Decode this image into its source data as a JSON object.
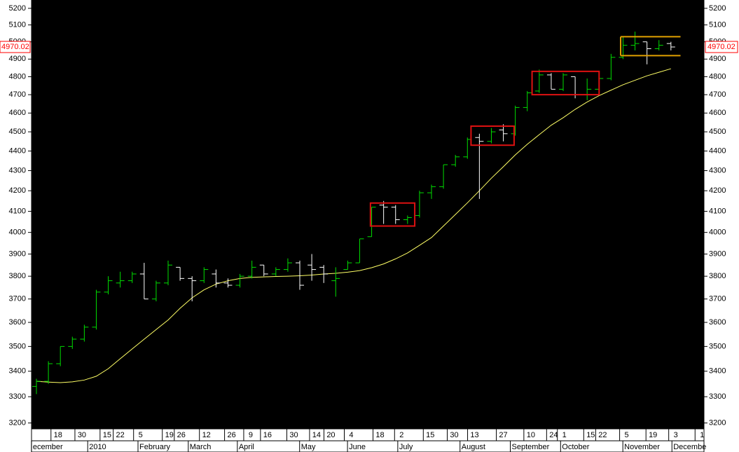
{
  "chart_data": {
    "type": "ohlc",
    "categories": [
      null,
      null,
      null,
      null,
      null,
      null,
      null,
      null,
      null,
      null,
      null,
      null,
      null,
      null,
      null,
      null,
      null,
      null,
      null,
      null,
      null,
      null,
      null,
      null,
      null,
      null,
      null,
      null,
      null,
      null,
      null,
      null,
      null,
      null,
      null,
      null,
      null,
      null,
      null,
      null,
      null,
      null,
      null,
      null,
      null,
      null,
      null,
      null,
      null,
      null,
      null,
      null,
      null,
      null
    ],
    "ohlc": {
      "open": [
        3340,
        3360,
        3430,
        3500,
        3530,
        3580,
        3730,
        3770,
        3780,
        3810,
        3700,
        3770,
        3840,
        3790,
        3780,
        3810,
        3770,
        3760,
        3800,
        3850,
        3810,
        3830,
        3860,
        3850,
        3840,
        3780,
        3830,
        3860,
        3980,
        4130,
        4120,
        4060,
        4080,
        4190,
        4220,
        4330,
        4370,
        4470,
        4450,
        4510,
        4490,
        4630,
        4720,
        4810,
        4730,
        4800,
        4700,
        4730,
        4790,
        4910,
        4980,
        5000,
        4960,
        4990
      ],
      "high": [
        3370,
        3440,
        3500,
        3540,
        3590,
        3740,
        3800,
        3820,
        3820,
        3860,
        3780,
        3870,
        3840,
        3800,
        3840,
        3830,
        3790,
        3810,
        3870,
        3850,
        3840,
        3880,
        3870,
        3900,
        3850,
        3840,
        3870,
        3970,
        4120,
        4150,
        4130,
        4080,
        4200,
        4230,
        4330,
        4380,
        4470,
        4490,
        4520,
        4540,
        4640,
        4720,
        4840,
        4820,
        4820,
        4800,
        4790,
        4800,
        4930,
        5030,
        5060,
        5000,
        5010,
        5000
      ],
      "low": [
        3310,
        3350,
        3420,
        3490,
        3520,
        3570,
        3720,
        3750,
        3770,
        3700,
        3690,
        3760,
        3780,
        3690,
        3770,
        3750,
        3750,
        3750,
        3790,
        3800,
        3800,
        3820,
        3740,
        3780,
        3770,
        3710,
        3830,
        3860,
        3980,
        4040,
        4040,
        4040,
        4070,
        4160,
        4210,
        4320,
        4360,
        4160,
        4440,
        4450,
        4480,
        4610,
        4710,
        4730,
        4720,
        4680,
        4670,
        4720,
        4780,
        4900,
        4950,
        4870,
        4950,
        4950
      ],
      "close": [
        3360,
        3430,
        3500,
        3530,
        3580,
        3730,
        3780,
        3780,
        3810,
        3700,
        3770,
        3850,
        3790,
        3780,
        3830,
        3770,
        3760,
        3800,
        3840,
        3810,
        3830,
        3860,
        3760,
        3830,
        3810,
        3790,
        3860,
        3970,
        4120,
        4120,
        4060,
        4070,
        4190,
        4220,
        4330,
        4370,
        4460,
        4450,
        4500,
        4490,
        4630,
        4710,
        4810,
        4730,
        4810,
        4700,
        4730,
        4790,
        4910,
        4980,
        4990,
        4960,
        4980,
        4970
      ],
      "up_color": "#00dd00",
      "down_color": "#ffffff"
    },
    "moving_average": {
      "color": "#ffff66",
      "values": [
        3360,
        3357,
        3355,
        3358,
        3365,
        3380,
        3410,
        3450,
        3490,
        3530,
        3570,
        3610,
        3660,
        3705,
        3740,
        3765,
        3780,
        3790,
        3795,
        3797,
        3799,
        3800,
        3802,
        3805,
        3810,
        3813,
        3818,
        3825,
        3838,
        3855,
        3878,
        3905,
        3940,
        3976,
        4030,
        4085,
        4141,
        4200,
        4262,
        4320,
        4380,
        4435,
        4485,
        4535,
        4575,
        4620,
        4660,
        4695,
        4725,
        4755,
        4780,
        4805,
        4825,
        4845
      ]
    },
    "rectangles": [
      {
        "x": [
          27.9,
          31.6
        ],
        "y": [
          4030,
          4140
        ],
        "color": "#dd1111"
      },
      {
        "x": [
          36.3,
          39.9
        ],
        "y": [
          4430,
          4530
        ],
        "color": "#dd1111"
      },
      {
        "x": [
          41.4,
          47.0
        ],
        "y": [
          4700,
          4830
        ],
        "color": "#dd1111"
      }
    ],
    "channel": {
      "x": [
        48.8,
        53.8
      ],
      "y": [
        4920,
        5030
      ],
      "color": "#e0a000"
    },
    "last_price": {
      "value": 4970.02,
      "label": "4970.02",
      "color": "#ff0000"
    },
    "log_scale": true,
    "ylim": [
      3178,
      5251
    ],
    "yticks": [
      3200,
      3300,
      3400,
      3500,
      3600,
      3700,
      3800,
      3900,
      4000,
      4100,
      4200,
      4300,
      4400,
      4500,
      4600,
      4700,
      4800,
      4900,
      5000,
      5100,
      5200
    ],
    "xlim": [
      -0.41,
      55.76
    ],
    "xticks": [
      {
        "value": 1.8,
        "label": "18"
      },
      {
        "value": 3.8,
        "label": "30"
      },
      {
        "value": 5.9,
        "label": "15"
      },
      {
        "value": 7.0,
        "label": "22"
      },
      {
        "value": 8.7,
        "label": "5"
      },
      {
        "value": 11.1,
        "label": "19"
      },
      {
        "value": 12.1,
        "label": "26"
      },
      {
        "value": 14.2,
        "label": "12"
      },
      {
        "value": 16.3,
        "label": "26"
      },
      {
        "value": 17.9,
        "label": "9"
      },
      {
        "value": 19.3,
        "label": "16"
      },
      {
        "value": 21.5,
        "label": "30"
      },
      {
        "value": 23.4,
        "label": "14"
      },
      {
        "value": 24.6,
        "label": "20"
      },
      {
        "value": 26.3,
        "label": "4"
      },
      {
        "value": 28.7,
        "label": "18"
      },
      {
        "value": 30.5,
        "label": "2"
      },
      {
        "value": 32.9,
        "label": "15"
      },
      {
        "value": 34.9,
        "label": "30"
      },
      {
        "value": 36.6,
        "label": "13"
      },
      {
        "value": 39.0,
        "label": "27"
      },
      {
        "value": 41.3,
        "label": "10"
      },
      {
        "value": 43.2,
        "label": "24"
      },
      {
        "value": 44.1,
        "label": "1"
      },
      {
        "value": 46.3,
        "label": "15"
      },
      {
        "value": 47.3,
        "label": "22"
      },
      {
        "value": 49.3,
        "label": "5"
      },
      {
        "value": 51.5,
        "label": "19"
      },
      {
        "value": 53.4,
        "label": "3"
      },
      {
        "value": 55.6,
        "label": "1"
      }
    ],
    "xmonths": [
      {
        "value": -0.3,
        "label": "ecember"
      },
      {
        "value": 4.4,
        "label": "2010"
      },
      {
        "value": 8.6,
        "label": "February"
      },
      {
        "value": 12.8,
        "label": "March"
      },
      {
        "value": 16.9,
        "label": "April"
      },
      {
        "value": 22.1,
        "label": "May"
      },
      {
        "value": 26.1,
        "label": "June"
      },
      {
        "value": 30.3,
        "label": "July"
      },
      {
        "value": 35.5,
        "label": "August"
      },
      {
        "value": 39.7,
        "label": "September"
      },
      {
        "value": 43.9,
        "label": "October"
      },
      {
        "value": 49.1,
        "label": "November"
      },
      {
        "value": 53.2,
        "label": "Decembe"
      }
    ]
  }
}
